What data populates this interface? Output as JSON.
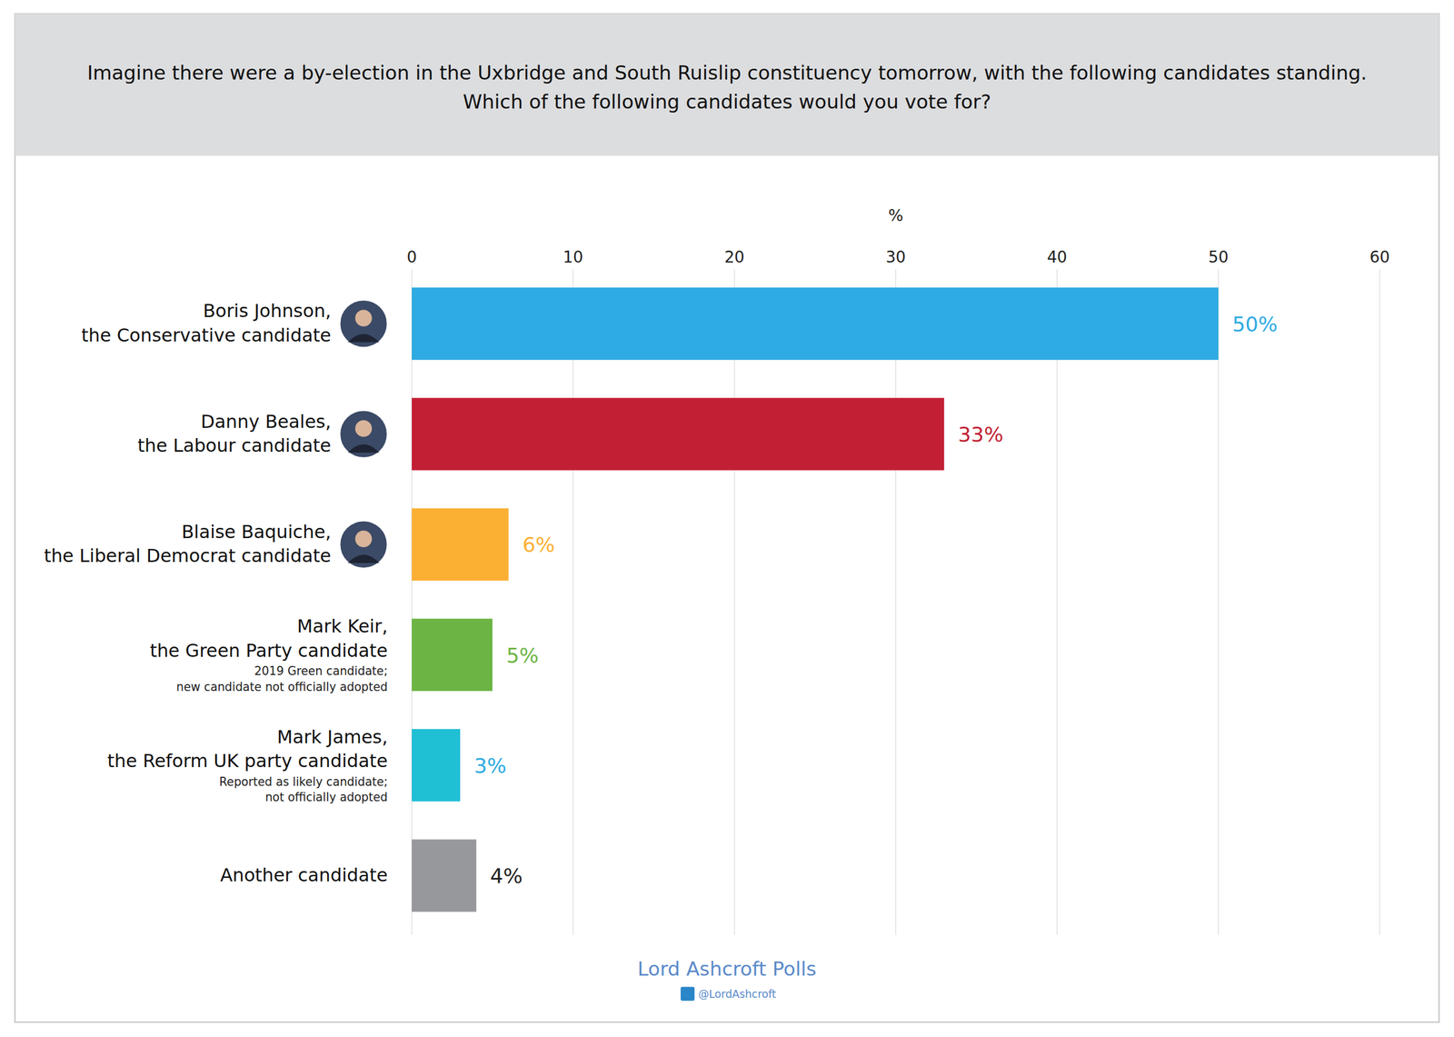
{
  "chart_data": {
    "type": "bar",
    "orientation": "horizontal",
    "title": "Imagine there were a by-election in the Uxbridge and South Ruislip constituency tomorrow, with the following candidates standing.\nWhich of the following candidates would you vote for?",
    "x_label": "%",
    "categories": [
      "Boris Johnson, the Conservative candidate",
      "Danny Beales, the Labour candidate",
      "Blaise Baquiche, the Liberal Democrat candidate",
      "Mark Keir, the Green Party candidate",
      "Mark James, the Reform UK party candidate",
      "Another candidate"
    ],
    "notes": [
      null,
      null,
      null,
      "2019 Green candidate; new candidate not officially adopted",
      "Reported as likely candidate; not officially adopted",
      null
    ],
    "values": [
      50,
      33,
      6,
      5,
      3,
      4
    ],
    "value_labels": [
      "50%",
      "33%",
      "6%",
      "5%",
      "3%",
      "4%"
    ],
    "colors": [
      "#2eabe2",
      "#c21f34",
      "#fbb034",
      "#6cb545",
      "#1fbfd4",
      "#97989c"
    ],
    "xlim": [
      0,
      60
    ],
    "xticks": [
      0,
      10,
      20,
      30,
      40,
      50,
      60
    ],
    "grid": true,
    "data_labels": true,
    "source": "Lord Ashcroft Polls",
    "credit": "@LordAshcroft"
  }
}
